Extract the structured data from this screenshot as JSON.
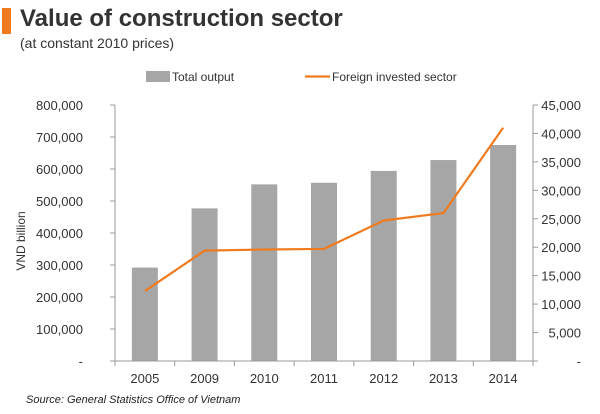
{
  "header": {
    "title": "Value of construction sector",
    "subtitle": "(at constant 2010 prices)",
    "accent_color": "#f07b1e"
  },
  "source": "Source: General Statistics Office of Vietnam",
  "chart_data": {
    "type": "bar",
    "title": "Value of construction sector",
    "subtitle": "(at constant 2010 prices)",
    "categories": [
      "2005",
      "2009",
      "2010",
      "2011",
      "2012",
      "2013",
      "2014"
    ],
    "series": [
      {
        "name": "Total output",
        "type": "bar",
        "axis": "left",
        "color": "#a6a6a6",
        "values": [
          292000,
          477000,
          552000,
          557000,
          594000,
          628000,
          675000
        ]
      },
      {
        "name": "Foreign invested sector",
        "type": "line",
        "axis": "right",
        "color": "#f07b1e",
        "values": [
          12300,
          19400,
          19600,
          19700,
          24700,
          26000,
          41000
        ]
      }
    ],
    "ylabel": "VND billion",
    "ylim": [
      0,
      800000
    ],
    "y_ticks": [
      "-",
      "100,000",
      "200,000",
      "300,000",
      "400,000",
      "500,000",
      "600,000",
      "700,000",
      "800,000"
    ],
    "y2lim": [
      0,
      45000
    ],
    "y2_ticks": [
      "-",
      "5,000",
      "10,000",
      "15,000",
      "20,000",
      "25,000",
      "30,000",
      "35,000",
      "40,000",
      "45,000"
    ],
    "grid": false,
    "legend_position": "top"
  }
}
